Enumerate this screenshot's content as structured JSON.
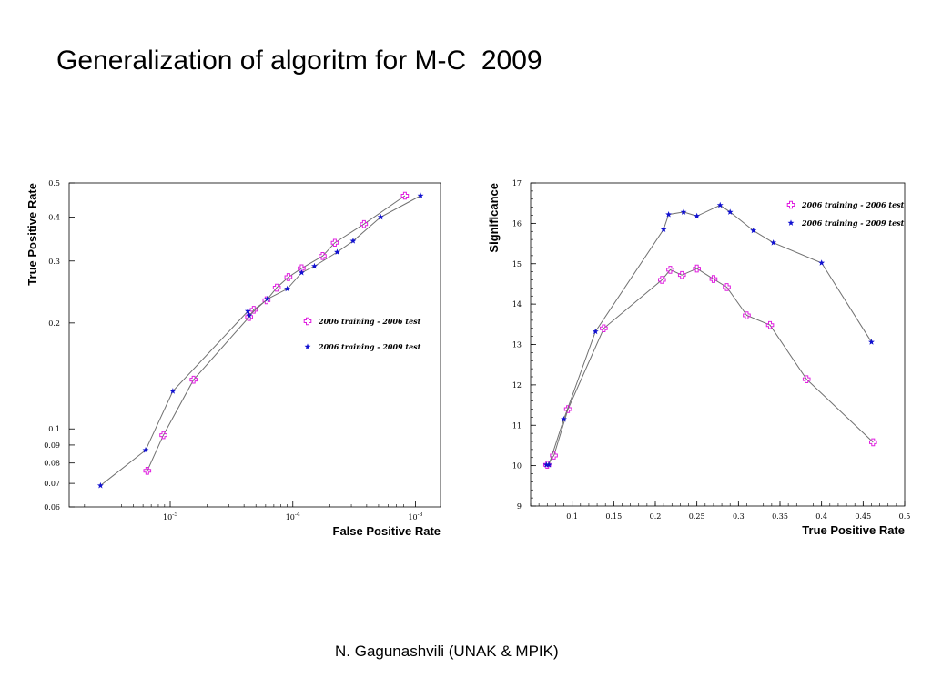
{
  "slide": {
    "title": "Generalization of algoritm for M-C  2009",
    "footer": "N. Gagunashvili (UNAK & MPIK)"
  },
  "colors": {
    "series_2006": "#e020e0",
    "series_2009": "#1010d0",
    "line": "#707070"
  },
  "chart_data": [
    {
      "type": "line",
      "xlabel": "False Positive Rate",
      "ylabel": "True Positive Rate",
      "xscale": "log",
      "yscale": "log",
      "xlim": [
        1.5e-06,
        0.0016
      ],
      "ylim": [
        0.06,
        0.5
      ],
      "xticks": [
        1e-05,
        0.0001,
        0.001
      ],
      "xtick_labels": [
        "10^-5",
        "10^-4",
        "10^-3"
      ],
      "yticks": [
        0.06,
        0.07,
        0.08,
        0.09,
        0.1,
        0.2,
        0.3,
        0.4,
        0.5
      ],
      "ytick_labels": [
        "0.06",
        "0.07",
        "0.08",
        "0.09",
        "0.1",
        "0.2",
        "0.3",
        "0.4",
        "0.5"
      ],
      "legend_position": "center-right",
      "series": [
        {
          "name": "2006 training - 2006 test",
          "marker": "cross",
          "x": [
            6.5e-06,
            8.8e-06,
            1.55e-05,
            4.4e-05,
            4.8e-05,
            6.1e-05,
            7.4e-05,
            9.2e-05,
            0.000118,
            0.000175,
            0.00022,
            0.00038,
            0.00082
          ],
          "y": [
            0.076,
            0.096,
            0.138,
            0.208,
            0.218,
            0.232,
            0.252,
            0.27,
            0.286,
            0.31,
            0.338,
            0.382,
            0.46
          ]
        },
        {
          "name": "2006 training - 2009 test",
          "marker": "star",
          "x": [
            2.7e-06,
            6.3e-06,
            1.05e-05,
            4.3e-05,
            4.4e-05,
            6.2e-05,
            9e-05,
            0.000118,
            0.00015,
            0.00023,
            0.00031,
            0.00052,
            0.0011
          ],
          "y": [
            0.069,
            0.087,
            0.128,
            0.216,
            0.21,
            0.234,
            0.25,
            0.278,
            0.29,
            0.318,
            0.342,
            0.4,
            0.46
          ]
        }
      ]
    },
    {
      "type": "line",
      "xlabel": "True Positive Rate",
      "ylabel": "Significance",
      "xlim": [
        0.05,
        0.5
      ],
      "ylim": [
        9,
        17
      ],
      "xticks": [
        0.1,
        0.15,
        0.2,
        0.25,
        0.3,
        0.35,
        0.4,
        0.45,
        0.5
      ],
      "xtick_labels": [
        "0.1",
        "0.15",
        "0.2",
        "0.25",
        "0.3",
        "0.35",
        "0.4",
        "0.45",
        "0.5"
      ],
      "yticks": [
        9,
        10,
        11,
        12,
        13,
        14,
        15,
        16,
        17
      ],
      "ytick_labels": [
        "9",
        "10",
        "11",
        "12",
        "13",
        "14",
        "15",
        "16",
        "17"
      ],
      "legend_position": "top-right",
      "series": [
        {
          "name": "2006 training - 2006 test",
          "marker": "cross",
          "x": [
            0.07,
            0.078,
            0.095,
            0.138,
            0.208,
            0.218,
            0.232,
            0.25,
            0.27,
            0.286,
            0.31,
            0.338,
            0.382,
            0.462
          ],
          "y": [
            10.02,
            10.25,
            11.4,
            13.4,
            14.6,
            14.85,
            14.72,
            14.88,
            14.62,
            14.42,
            13.72,
            13.48,
            12.14,
            10.58
          ]
        },
        {
          "name": "2006 training - 2009 test",
          "marker": "star",
          "x": [
            0.069,
            0.072,
            0.09,
            0.128,
            0.21,
            0.216,
            0.234,
            0.25,
            0.278,
            0.29,
            0.318,
            0.342,
            0.4,
            0.46
          ],
          "y": [
            10.02,
            10.02,
            11.15,
            13.32,
            15.85,
            16.22,
            16.28,
            16.18,
            16.45,
            16.28,
            15.82,
            15.52,
            15.02,
            13.06
          ]
        }
      ]
    }
  ]
}
